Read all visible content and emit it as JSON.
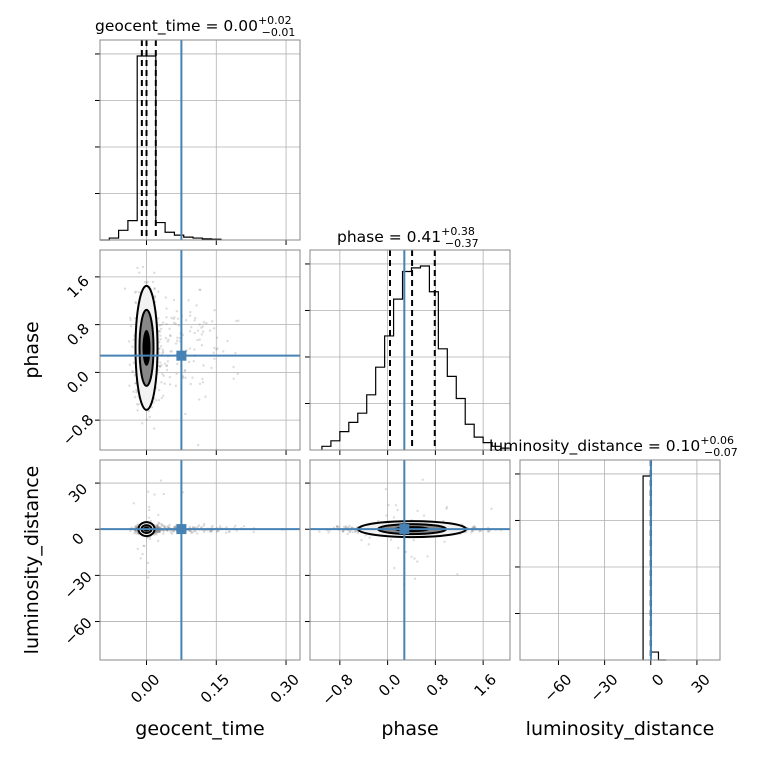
{
  "chart_data": {
    "type": "corner",
    "parameters": [
      {
        "key": "geocent_time",
        "label": "geocent_time",
        "title_main": "geocent_time = 0.00",
        "title_plus": "+0.02",
        "title_minus": "−0.01",
        "median": 0.0,
        "q_low": -0.01,
        "q_high": 0.02,
        "truth": 0.075,
        "range": [
          -0.1,
          0.33
        ],
        "ticks": [
          0.0,
          0.15,
          0.3
        ],
        "tick_labels": [
          "0.00",
          "0.15",
          "0.30"
        ],
        "hist": {
          "edges": [
            -0.1,
            -0.08,
            -0.06,
            -0.04,
            -0.02,
            0.0,
            0.02,
            0.04,
            0.06,
            0.08,
            0.1,
            0.12,
            0.14,
            0.16
          ],
          "counts": [
            0,
            0.01,
            0.05,
            0.1,
            0.95,
            0.95,
            0.09,
            0.04,
            0.025,
            0.015,
            0.01,
            0.006,
            0.004,
            0
          ]
        }
      },
      {
        "key": "phase",
        "label": "phase",
        "title_main": "phase = 0.41",
        "title_plus": "+0.38",
        "title_minus": "−0.37",
        "median": 0.41,
        "q_low": 0.04,
        "q_high": 0.79,
        "truth": 0.28,
        "range": [
          -1.3,
          2.05
        ],
        "ticks": [
          -0.8,
          0.0,
          0.8,
          1.6
        ],
        "tick_labels": [
          "−0.8",
          "0.0",
          "0.8",
          "1.6"
        ],
        "hist": {
          "edges": [
            -1.1,
            -0.95,
            -0.8,
            -0.65,
            -0.5,
            -0.35,
            -0.2,
            -0.05,
            0.1,
            0.25,
            0.4,
            0.55,
            0.7,
            0.85,
            1.0,
            1.15,
            1.3,
            1.45,
            1.6,
            1.75,
            1.9,
            2.05
          ],
          "counts": [
            0.02,
            0.05,
            0.1,
            0.15,
            0.2,
            0.3,
            0.45,
            0.62,
            0.82,
            0.97,
            0.99,
            1.0,
            0.86,
            0.55,
            0.4,
            0.28,
            0.14,
            0.07,
            0.04,
            0.02,
            0.01
          ]
        }
      },
      {
        "key": "luminosity_distance",
        "label": "luminosity_distance",
        "title_main": "luminosity_distance = 0.10",
        "title_plus": "+0.06",
        "title_minus": "−0.07",
        "median": 0.1,
        "q_low": 0.03,
        "q_high": 0.16,
        "truth": 0.1,
        "range": [
          -85,
          45
        ],
        "ticks": [
          -60,
          -30,
          0,
          30
        ],
        "tick_labels": [
          "−60",
          "−30",
          "0",
          "30"
        ],
        "hist": {
          "edges": [
            -5,
            0,
            5,
            10
          ],
          "counts": [
            0.93,
            0.04,
            0.0
          ]
        }
      }
    ],
    "grid": true,
    "truth_color": "#4682b4",
    "sample_color": "#8a8080"
  }
}
